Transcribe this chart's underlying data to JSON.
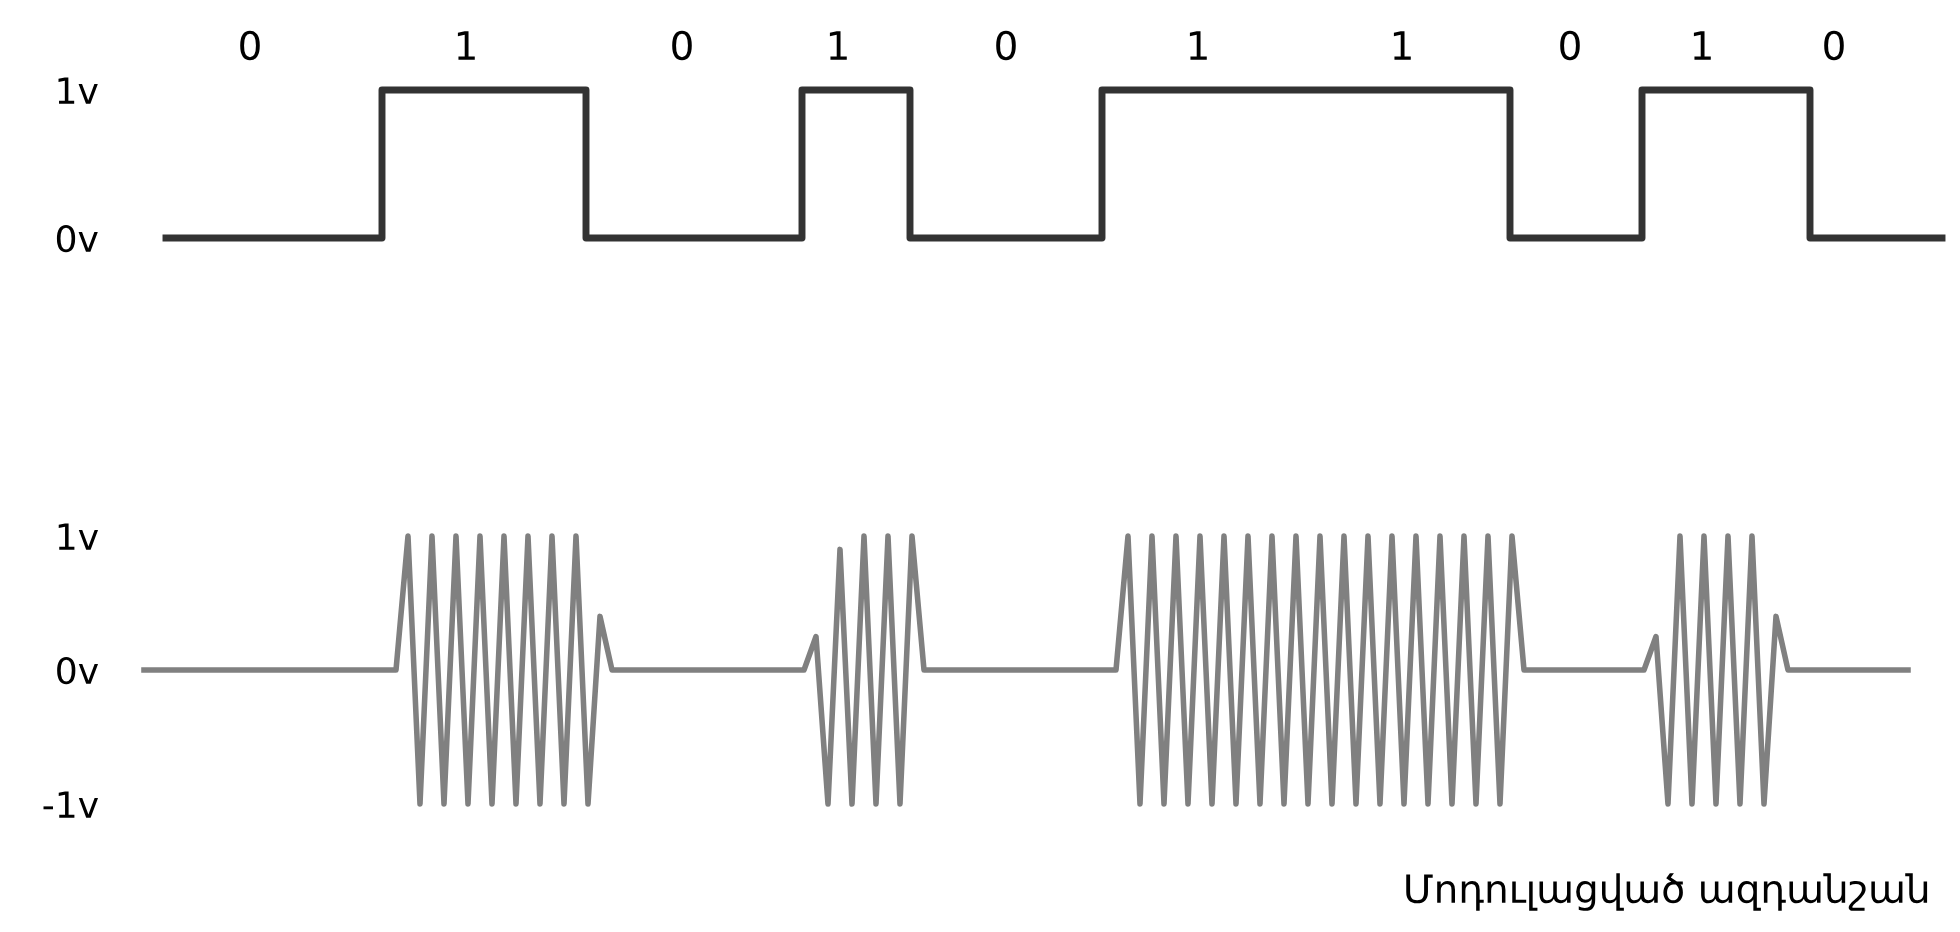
{
  "chart_data": [
    {
      "type": "step",
      "grid": false,
      "marker": "none",
      "line_style": "solid",
      "ylim": [
        0,
        1
      ],
      "yticks": [
        {
          "value": 0,
          "label": "0v"
        },
        {
          "value": 1,
          "label": "1v"
        }
      ],
      "categories": [
        null,
        null,
        null,
        null,
        null,
        null,
        null,
        "0",
        null,
        null,
        null,
        null,
        null,
        null,
        null,
        null,
        null,
        null,
        null,
        null,
        null,
        null,
        null,
        null,
        null,
        "1",
        null,
        null,
        null,
        null,
        null,
        null,
        null,
        null,
        null,
        null,
        null,
        null,
        null,
        null,
        null,
        null,
        null,
        "0",
        null,
        null,
        null,
        null,
        null,
        null,
        null,
        null,
        null,
        null,
        null,
        null,
        "1",
        null,
        null,
        null,
        null,
        null,
        null,
        null,
        null,
        null,
        null,
        null,
        null,
        null,
        "0",
        null,
        null,
        null,
        null,
        null,
        null,
        null,
        null,
        null,
        null,
        null,
        null,
        null,
        null,
        null,
        "1",
        null,
        null,
        null,
        null,
        null,
        null,
        null,
        null,
        null,
        null,
        null,
        null,
        null,
        null,
        null,
        null,
        "1",
        null,
        null,
        null,
        null,
        null,
        null,
        null,
        null,
        null,
        null,
        null,
        null,
        null,
        "0",
        null,
        null,
        null,
        null,
        null,
        null,
        null,
        null,
        null,
        null,
        "1",
        null,
        null,
        null,
        null,
        null,
        null,
        null,
        null,
        null,
        null,
        "0",
        null,
        null,
        null,
        null,
        null,
        null,
        null,
        null,
        null
      ],
      "series": [
        {
          "color": "#333333",
          "values": [
            0,
            0,
            0,
            0,
            0,
            0,
            0,
            0,
            0,
            0,
            0,
            0,
            0,
            0,
            0,
            0,
            0,
            0,
            1,
            1,
            1,
            1,
            1,
            1,
            1,
            1,
            1,
            1,
            1,
            1,
            1,
            1,
            1,
            1,
            1,
            0,
            0,
            0,
            0,
            0,
            0,
            0,
            0,
            0,
            0,
            0,
            0,
            0,
            0,
            0,
            0,
            0,
            0,
            1,
            1,
            1,
            1,
            1,
            1,
            1,
            1,
            1,
            0,
            0,
            0,
            0,
            0,
            0,
            0,
            0,
            0,
            0,
            0,
            0,
            0,
            0,
            0,
            0,
            1,
            1,
            1,
            1,
            1,
            1,
            1,
            1,
            1,
            1,
            1,
            1,
            1,
            1,
            1,
            1,
            1,
            1,
            1,
            1,
            1,
            1,
            1,
            1,
            1,
            1,
            1,
            1,
            1,
            1,
            1,
            1,
            1,
            1,
            0,
            0,
            0,
            0,
            0,
            0,
            0,
            0,
            0,
            0,
            0,
            1,
            1,
            1,
            1,
            1,
            1,
            1,
            1,
            1,
            1,
            1,
            1,
            1,
            1,
            0,
            0,
            0,
            0,
            0,
            0,
            0,
            0,
            0,
            0,
            0,
            0
          ]
        }
      ]
    },
    {
      "type": "line",
      "tick_labels": "y",
      "grid": false,
      "marker": "none",
      "line_style": "solid",
      "ylim": [
        -1,
        1
      ],
      "yticks": [
        {
          "value": -1,
          "label": "-1v"
        },
        {
          "value": 0,
          "label": "0v"
        },
        {
          "value": 1,
          "label": "1v"
        }
      ],
      "categories": [
        null,
        null,
        null,
        null,
        null,
        null,
        null,
        null,
        null,
        null,
        null,
        null,
        null,
        null,
        null,
        null,
        null,
        null,
        null,
        null,
        null,
        null,
        null,
        null,
        null,
        null,
        null,
        null,
        null,
        null,
        null,
        null,
        null,
        null,
        null,
        null,
        null,
        null,
        null,
        null,
        null,
        null,
        null,
        null,
        null,
        null,
        null,
        null,
        null,
        null,
        null,
        null,
        null,
        null,
        null,
        null,
        null,
        null,
        null,
        null,
        null,
        null,
        null,
        null,
        null,
        null,
        null,
        null,
        null,
        null,
        null,
        null,
        null,
        null,
        null,
        null,
        null,
        null,
        null,
        null,
        null,
        null,
        null,
        null,
        null,
        null,
        null,
        null,
        null,
        null,
        null,
        null,
        null,
        null,
        null,
        null,
        null,
        null,
        null,
        null,
        null,
        null,
        null,
        null,
        null,
        null,
        null,
        null,
        null,
        null,
        null,
        null,
        null,
        null,
        null,
        null,
        null,
        null,
        null,
        null,
        null,
        null,
        null,
        null,
        null,
        null,
        null,
        null,
        null,
        null,
        null,
        null,
        null,
        null,
        null,
        null,
        null,
        null,
        null,
        null,
        null,
        null,
        null,
        null,
        null,
        null,
        null,
        null
      ],
      "series": [
        {
          "color": "#808080",
          "values": [
            0,
            0,
            0,
            0,
            0,
            0,
            0,
            0,
            0,
            0,
            0,
            0,
            0,
            0,
            0,
            0,
            0,
            0,
            0,
            0,
            0,
            0,
            1,
            -1,
            1,
            -1,
            1,
            -1,
            1,
            -1,
            1,
            -1,
            1,
            -1,
            1,
            -1,
            1,
            -1,
            0.4,
            0,
            0,
            0,
            0,
            0,
            0,
            0,
            0,
            0,
            0,
            0,
            0,
            0,
            0,
            0,
            0,
            0,
            0.25,
            -1,
            0.9,
            -1,
            1,
            -1,
            1,
            -1,
            1,
            0,
            0,
            0,
            0,
            0,
            0,
            0,
            0,
            0,
            0,
            0,
            0,
            0,
            0,
            0,
            0,
            0,
            1,
            -1,
            1,
            -1,
            1,
            -1,
            1,
            -1,
            1,
            -1,
            1,
            -1,
            1,
            -1,
            1,
            -1,
            1,
            -1,
            1,
            -1,
            1,
            -1,
            1,
            -1,
            1,
            -1,
            1,
            -1,
            1,
            -1,
            1,
            -1,
            1,
            0,
            0,
            0,
            0,
            0,
            0,
            0,
            0,
            0,
            0,
            0,
            0.25,
            -1,
            1,
            -1,
            1,
            -1,
            1,
            -1,
            1,
            -1,
            0.4,
            0,
            0,
            0,
            0,
            0,
            0,
            0,
            0,
            0,
            0,
            0
          ]
        }
      ],
      "annotations": [
        "Մոդուլացված ազդանշան"
      ]
    }
  ]
}
